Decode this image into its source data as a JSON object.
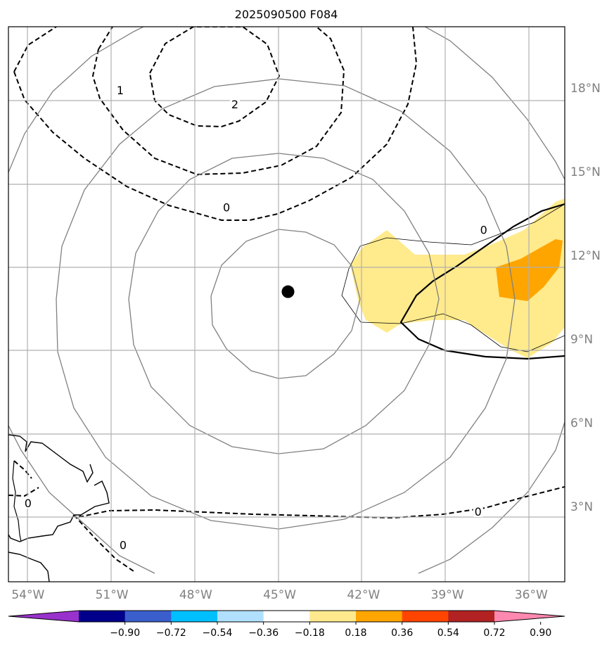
{
  "chart_data": {
    "type": "contour-map",
    "title": "2025090500 F084",
    "projection": "lat-lon",
    "lon_range": [
      -54.7,
      -34.8
    ],
    "lat_range": [
      0.3,
      20.2
    ],
    "lon_ticks": [
      {
        "lon": -54,
        "label": "54°W"
      },
      {
        "lon": -51,
        "label": "51°W"
      },
      {
        "lon": -48,
        "label": "48°W"
      },
      {
        "lon": -45,
        "label": "45°W"
      },
      {
        "lon": -42,
        "label": "42°W"
      },
      {
        "lon": -39,
        "label": "39°W"
      },
      {
        "lon": -36,
        "label": "36°W"
      }
    ],
    "lat_ticks": [
      {
        "lat": 3,
        "label": "3°N"
      },
      {
        "lat": 6,
        "label": "6°N"
      },
      {
        "lat": 9,
        "label": "9°N"
      },
      {
        "lat": 12,
        "label": "12°N"
      },
      {
        "lat": 15,
        "label": "15°N"
      },
      {
        "lat": 18,
        "label": "18°N"
      }
    ],
    "storm_center": {
      "lon": -44.7,
      "lat": 10.7
    },
    "range_rings_deg": [
      2.7,
      5.5,
      8.2,
      11.0
    ],
    "contour_labels": [
      {
        "text": "1",
        "lon": -50.7,
        "lat": 17.9
      },
      {
        "text": "2",
        "lon": -46.6,
        "lat": 17.4
      },
      {
        "text": "0",
        "lon": -46.9,
        "lat": 13.7
      },
      {
        "text": "0",
        "lon": -37.7,
        "lat": 12.9
      },
      {
        "text": "0",
        "lon": -54.0,
        "lat": 3.1
      },
      {
        "text": "0",
        "lon": -50.6,
        "lat": 1.6
      },
      {
        "text": "0",
        "lon": -37.9,
        "lat": 2.8
      }
    ],
    "filled_areas": [
      {
        "level": "0.18 to 0.36",
        "region": "east of center, about 42°W to 35°W, 9°N to 14°N"
      },
      {
        "level": "0.36 to 0.54",
        "region": "about 37.8°W to 35.2°W, 10.7°N to 13°N"
      }
    ],
    "colorbar": {
      "ticks": [
        "−0.90",
        "−0.72",
        "−0.54",
        "−0.36",
        "−0.18",
        "0.18",
        "0.36",
        "0.54",
        "0.72",
        "0.90"
      ],
      "colors": [
        "#9932cc",
        "#00008b",
        "#3a5fcd",
        "#00bfff",
        "#b0e0fe",
        "#ffffff",
        "#ffe98c",
        "#ffa500",
        "#ff4500",
        "#b22222",
        "#ff88b0"
      ]
    }
  }
}
